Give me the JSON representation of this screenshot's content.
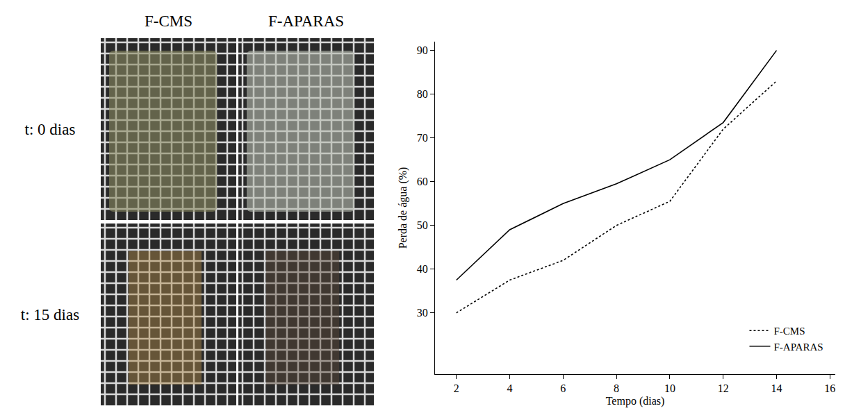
{
  "photo_grid": {
    "columns": [
      "F-CMS",
      "F-APARAS"
    ],
    "rows": [
      "t: 0 dias",
      "t: 15 dias"
    ]
  },
  "chart_data": {
    "type": "line",
    "x_label": "Tempo (dias)",
    "y_label": "Perda de água (%)",
    "x": [
      2,
      4,
      6,
      8,
      10,
      12,
      14
    ],
    "series": [
      {
        "name": "F-CMS",
        "color": "#000000",
        "line_style": "dot",
        "values": [
          30,
          37.5,
          42,
          50,
          55.5,
          72,
          83
        ]
      },
      {
        "name": "F-APARAS",
        "color": "#000000",
        "line_style": "solid",
        "values": [
          37.5,
          49,
          55,
          59.5,
          65,
          73.5,
          90
        ]
      }
    ],
    "xlim": [
      1.2,
      16.2
    ],
    "xticks": [
      2,
      4,
      6,
      8,
      10,
      12,
      14,
      16
    ],
    "ylim": [
      16,
      92
    ],
    "yticks": [
      30,
      40,
      50,
      60,
      70,
      80,
      90
    ],
    "grid": false,
    "legend": "lower right"
  }
}
